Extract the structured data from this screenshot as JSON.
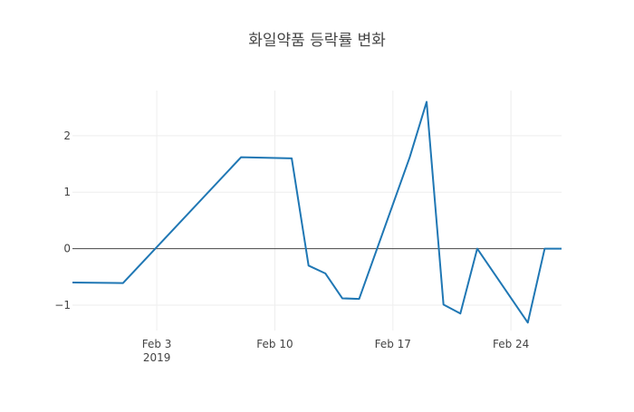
{
  "chart_data": {
    "type": "line",
    "title": "화일약품 등락률 변화",
    "xlabel": "",
    "ylabel": "",
    "x_axis": {
      "type": "date",
      "range": [
        "2019-01-29",
        "2019-02-27"
      ],
      "ticks": [
        {
          "value": "2019-02-03",
          "label": "Feb 3",
          "sublabel": "2019"
        },
        {
          "value": "2019-02-10",
          "label": "Feb 10",
          "sublabel": ""
        },
        {
          "value": "2019-02-17",
          "label": "Feb 17",
          "sublabel": ""
        },
        {
          "value": "2019-02-24",
          "label": "Feb 24",
          "sublabel": ""
        }
      ]
    },
    "y_axis": {
      "range": [
        -1.45,
        2.8
      ],
      "ticks": [
        {
          "value": 2,
          "label": "2"
        },
        {
          "value": 1,
          "label": "1"
        },
        {
          "value": 0,
          "label": "0"
        },
        {
          "value": -1,
          "label": "−1"
        }
      ],
      "zeroline": true
    },
    "grid": true,
    "line_color": "#1f77b4",
    "series": [
      {
        "x": [
          "2019-01-29",
          "2019-02-01",
          "2019-02-08",
          "2019-02-11",
          "2019-02-12",
          "2019-02-13",
          "2019-02-14",
          "2019-02-15",
          "2019-02-18",
          "2019-02-19",
          "2019-02-20",
          "2019-02-21",
          "2019-02-22",
          "2019-02-25",
          "2019-02-26",
          "2019-02-27"
        ],
        "values": [
          -0.6,
          -0.61,
          1.62,
          1.6,
          -0.3,
          -0.44,
          -0.88,
          -0.89,
          1.62,
          2.6,
          -0.99,
          -1.15,
          0.0,
          -1.31,
          0.0,
          0.0
        ]
      }
    ]
  }
}
